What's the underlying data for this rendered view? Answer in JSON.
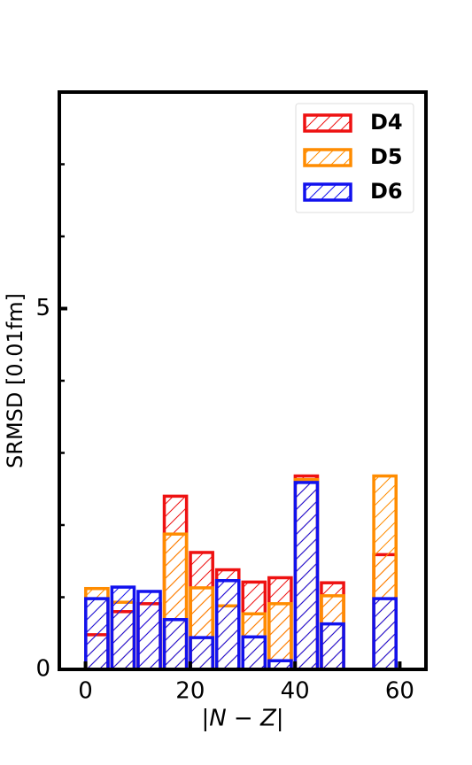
{
  "chart_data": {
    "type": "histogram",
    "xlabel": "|N − Z|",
    "ylabel": "SRMSD [0.01fm]",
    "bins": [
      0,
      5,
      10,
      15,
      20,
      25,
      30,
      35,
      40,
      45,
      50,
      55,
      60
    ],
    "series": [
      {
        "name": "D4",
        "color": "#ee1111",
        "values": [
          0.48,
          0.8,
          0.91,
          2.4,
          1.62,
          1.38,
          1.21,
          1.27,
          2.68,
          1.2,
          0,
          1.59
        ]
      },
      {
        "name": "D5",
        "color": "#ff8c00",
        "values": [
          1.12,
          0.93,
          0,
          1.875,
          1.13,
          0.88,
          0.77,
          0.91,
          2.63,
          1.02,
          0,
          2.68
        ]
      },
      {
        "name": "D6",
        "color": "#1111ee",
        "values": [
          0.98,
          1.14,
          1.08,
          0.69,
          0.44,
          1.23,
          0.45,
          0.12,
          2.59,
          0.63,
          0,
          0.98
        ]
      }
    ],
    "xlim": [
      -5,
      65
    ],
    "xticks": [
      0,
      20,
      40,
      60
    ],
    "ylim": [
      0,
      8
    ],
    "yticks": [
      0,
      5
    ],
    "yminorticks": [
      1,
      2,
      3,
      4,
      6,
      7
    ],
    "legend": "upper right"
  }
}
